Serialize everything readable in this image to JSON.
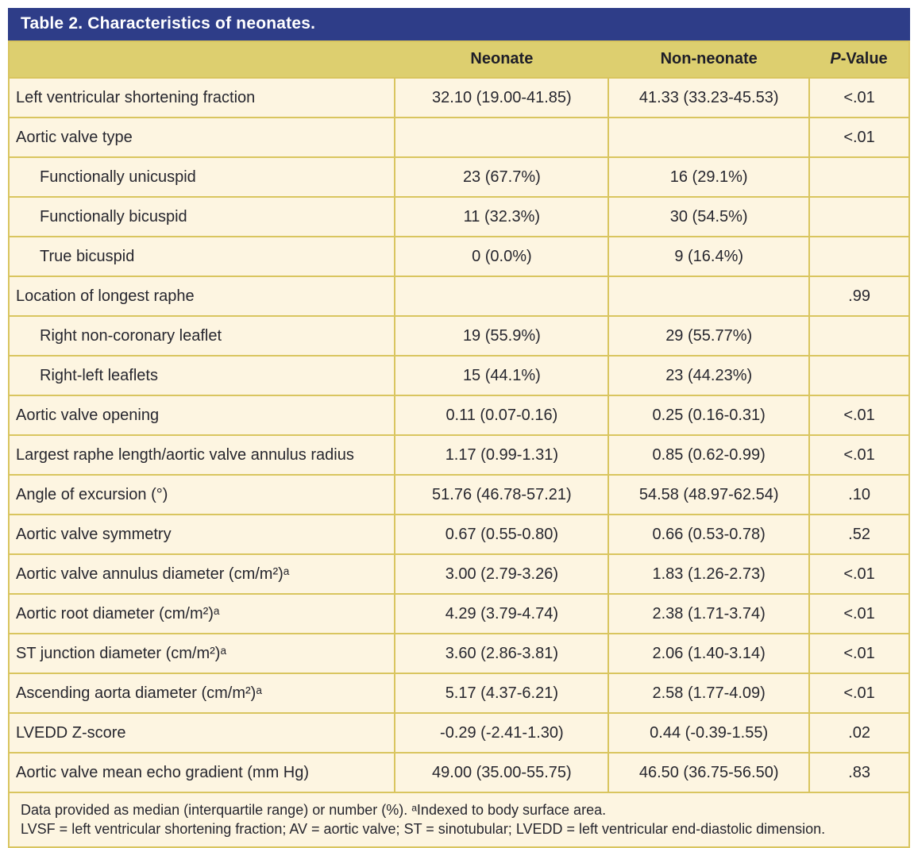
{
  "title": "Table 2. Characteristics of neonates.",
  "columns": [
    {
      "key": "label",
      "label": ""
    },
    {
      "key": "neonate",
      "label": "Neonate"
    },
    {
      "key": "non_neonate",
      "label": "Non-neonate"
    },
    {
      "key": "p",
      "label": "P-Value",
      "italic_first": true
    }
  ],
  "rows": [
    {
      "label": "Left ventricular shortening fraction",
      "indent": false,
      "neonate": "32.10 (19.00-41.85)",
      "non_neonate": "41.33 (33.23-45.53)",
      "p": "<.01"
    },
    {
      "label": "Aortic valve type",
      "indent": false,
      "neonate": "",
      "non_neonate": "",
      "p": "<.01"
    },
    {
      "label": "Functionally unicuspid",
      "indent": true,
      "neonate": "23 (67.7%)",
      "non_neonate": "16 (29.1%)",
      "p": ""
    },
    {
      "label": "Functionally bicuspid",
      "indent": true,
      "neonate": "11 (32.3%)",
      "non_neonate": "30 (54.5%)",
      "p": ""
    },
    {
      "label": "True bicuspid",
      "indent": true,
      "neonate": "0 (0.0%)",
      "non_neonate": "9 (16.4%)",
      "p": ""
    },
    {
      "label": "Location of longest raphe",
      "indent": false,
      "neonate": "",
      "non_neonate": "",
      "p": ".99"
    },
    {
      "label": "Right non-coronary leaflet",
      "indent": true,
      "neonate": "19 (55.9%)",
      "non_neonate": "29 (55.77%)",
      "p": ""
    },
    {
      "label": "Right-left leaflets",
      "indent": true,
      "neonate": "15 (44.1%)",
      "non_neonate": "23 (44.23%)",
      "p": ""
    },
    {
      "label": "Aortic valve opening",
      "indent": false,
      "neonate": "0.11 (0.07-0.16)",
      "non_neonate": "0.25 (0.16-0.31)",
      "p": "<.01"
    },
    {
      "label": "Largest raphe length/aortic valve annulus radius",
      "indent": false,
      "neonate": "1.17 (0.99-1.31)",
      "non_neonate": "0.85 (0.62-0.99)",
      "p": "<.01"
    },
    {
      "label": "Angle of excursion (°)",
      "indent": false,
      "neonate": "51.76 (46.78-57.21)",
      "non_neonate": "54.58 (48.97-62.54)",
      "p": ".10"
    },
    {
      "label": "Aortic valve symmetry",
      "indent": false,
      "neonate": "0.67 (0.55-0.80)",
      "non_neonate": "0.66 (0.53-0.78)",
      "p": ".52"
    },
    {
      "label": "Aortic valve annulus diameter (cm/m²)ᵃ",
      "indent": false,
      "neonate": "3.00 (2.79-3.26)",
      "non_neonate": "1.83 (1.26-2.73)",
      "p": "<.01"
    },
    {
      "label": "Aortic root diameter (cm/m²)ᵃ",
      "indent": false,
      "neonate": "4.29 (3.79-4.74)",
      "non_neonate": "2.38 (1.71-3.74)",
      "p": "<.01"
    },
    {
      "label": "ST junction diameter (cm/m²)ᵃ",
      "indent": false,
      "neonate": "3.60 (2.86-3.81)",
      "non_neonate": "2.06 (1.40-3.14)",
      "p": "<.01"
    },
    {
      "label": "Ascending aorta diameter (cm/m²)ᵃ",
      "indent": false,
      "neonate": "5.17 (4.37-6.21)",
      "non_neonate": "2.58 (1.77-4.09)",
      "p": "<.01"
    },
    {
      "label": "LVEDD Z-score",
      "indent": false,
      "neonate": "-0.29 (-2.41-1.30)",
      "non_neonate": "0.44 (-0.39-1.55)",
      "p": ".02"
    },
    {
      "label": "Aortic valve mean echo gradient (mm Hg)",
      "indent": false,
      "neonate": "49.00 (35.00-55.75)",
      "non_neonate": "46.50 (36.75-56.50)",
      "p": ".83"
    }
  ],
  "footnotes": [
    "Data provided as median (interquartile range) or number (%). ᵃIndexed to body surface area.",
    "LVSF = left ventricular shortening fraction; AV = aortic valve; ST = sinotubular; LVEDD = left ventricular end-diastolic dimension."
  ],
  "colors": {
    "title_bar_bg": "#2e3d88",
    "title_text": "#ffffff",
    "header_band_bg": "#ddcf6f",
    "body_bg": "#fdf5e1",
    "border": "#d9c55f",
    "text": "#26262e"
  }
}
